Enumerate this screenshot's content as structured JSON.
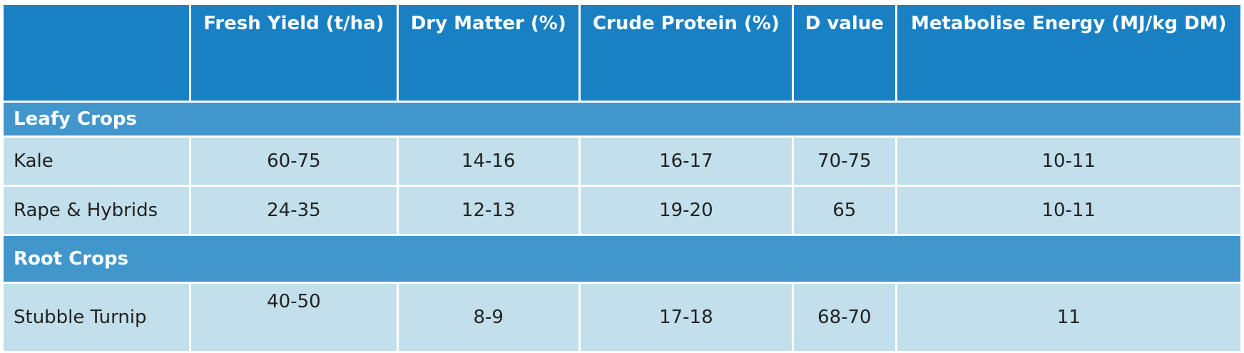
{
  "headers": [
    "",
    "Fresh Yield (t/ha)",
    "Dry Matter (%)",
    "Crude Protein (%)",
    "D value",
    "Metabolise Energy (MJ/kg DM)"
  ],
  "sections": [
    {
      "title": "Leafy Crops",
      "rows": [
        {
          "name": "Kale",
          "values": [
            "60-75",
            "14-16",
            "16-17",
            "70-75",
            "10-11"
          ]
        },
        {
          "name": "Rape & Hybrids",
          "values": [
            "24-35",
            "12-13",
            "19-20",
            "65",
            "10-11"
          ]
        }
      ]
    },
    {
      "title": "Root Crops",
      "rows": [
        {
          "name": "Stubble Turnip",
          "values": [
            "40-50",
            "8-9",
            "17-18",
            "68-70",
            "11"
          ]
        }
      ]
    }
  ],
  "colors": {
    "header": "#1a80c4",
    "section": "#4197cc",
    "cell": "#c2dfeb"
  }
}
